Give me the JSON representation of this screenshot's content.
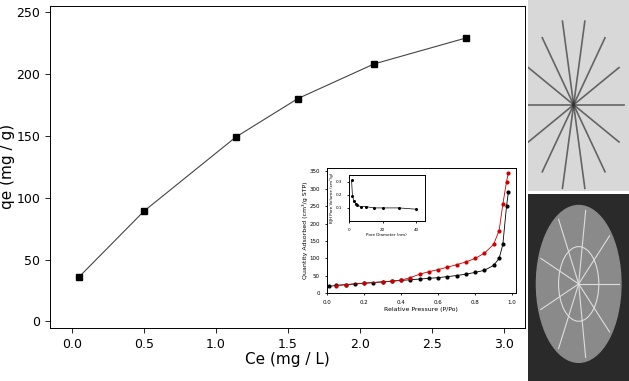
{
  "chart_data": [
    {
      "type": "line",
      "x_label": "Ce (mg / L)",
      "y_label": "qe (mg / g)",
      "x": [
        0.05,
        0.5,
        1.14,
        1.57,
        2.1,
        2.74
      ],
      "values": [
        36,
        89,
        149,
        180,
        208,
        229
      ],
      "color": "#000000",
      "marker": "square",
      "line_style": "solid",
      "xlim": [
        -0.15,
        3.15
      ],
      "xticks": [
        {
          "value": 0.0,
          "label": "0.0"
        },
        {
          "value": 0.5,
          "label": "0.5"
        },
        {
          "value": 1.0,
          "label": "1.0"
        },
        {
          "value": 1.5,
          "label": "1.5"
        },
        {
          "value": 2.0,
          "label": "2.0"
        },
        {
          "value": 2.5,
          "label": "2.5"
        },
        {
          "value": 3.0,
          "label": "3.0"
        }
      ],
      "ylim": [
        -5,
        255
      ],
      "yticks": [
        0,
        50,
        100,
        150,
        200,
        250
      ],
      "grid": false
    },
    {
      "type": "line",
      "x_label": "Relative Pressure (P/Po)",
      "y_label": "Quantity Adsorbed (cm³/g STP)",
      "series": [
        {
          "color": "#000000",
          "marker": "circle",
          "line_style": "solid",
          "x": [
            0.01,
            0.05,
            0.1,
            0.15,
            0.2,
            0.25,
            0.3,
            0.35,
            0.4,
            0.45,
            0.5,
            0.55,
            0.6,
            0.65,
            0.7,
            0.75,
            0.8,
            0.85,
            0.9,
            0.93,
            0.95,
            0.97,
            0.98
          ],
          "values": [
            20,
            23,
            25,
            27,
            29,
            31,
            33,
            35,
            37,
            39,
            41,
            43,
            45,
            48,
            51,
            55,
            60,
            66,
            80,
            100,
            140,
            250,
            290
          ]
        },
        {
          "color": "#cc0000",
          "marker": "circle",
          "line_style": "solid",
          "x": [
            0.98,
            0.97,
            0.95,
            0.93,
            0.9,
            0.85,
            0.8,
            0.75,
            0.7,
            0.65,
            0.6,
            0.55,
            0.5,
            0.45,
            0.4,
            0.35,
            0.3,
            0.2,
            0.1,
            0.05
          ],
          "values": [
            345,
            320,
            255,
            180,
            140,
            115,
            100,
            90,
            82,
            75,
            68,
            62,
            55,
            45,
            38,
            35,
            33,
            29,
            25,
            22
          ]
        }
      ],
      "xlim": [
        0,
        1.02
      ],
      "xticks": [
        {
          "value": 0.0,
          "label": "0.0"
        },
        {
          "value": 0.2,
          "label": "0.2"
        },
        {
          "value": 0.4,
          "label": "0.4"
        },
        {
          "value": 0.6,
          "label": "0.6"
        },
        {
          "value": 0.8,
          "label": "0.8"
        },
        {
          "value": 1.0,
          "label": "1.0"
        }
      ],
      "ylim": [
        0,
        360
      ],
      "yticks": [
        0,
        50,
        100,
        150,
        200,
        250,
        300,
        350
      ],
      "grid": false
    },
    {
      "type": "line",
      "x_label": "Pore Diameter (nm)",
      "y_label": "BJH Pore Volume (cm³/g)",
      "x": [
        1.5,
        2,
        3,
        4,
        5,
        7,
        10,
        15,
        20,
        30,
        40
      ],
      "values": [
        0.31,
        0.19,
        0.15,
        0.13,
        0.12,
        0.11,
        0.11,
        0.1,
        0.1,
        0.1,
        0.09
      ],
      "color": "#000000",
      "marker": "circle",
      "line_style": "solid",
      "xlim": [
        0,
        45
      ],
      "xticks": [
        0,
        20,
        40
      ],
      "ylim": [
        0,
        0.35
      ],
      "yticks": [
        0.1,
        0.2,
        0.3
      ],
      "grid": false
    }
  ]
}
